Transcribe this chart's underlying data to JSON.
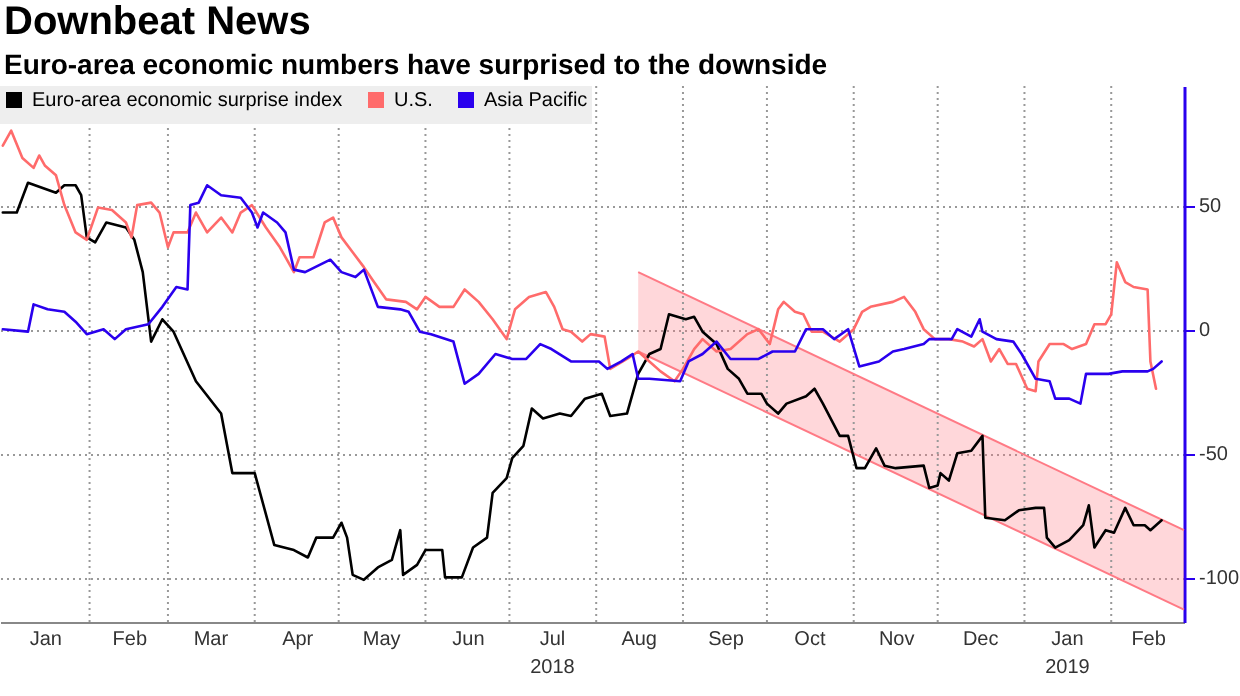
{
  "chart_data": {
    "type": "line",
    "title": "Downbeat News",
    "subtitle": "Euro-area economic numbers have surprised to the downside",
    "xlim": [
      "2017-12-31",
      "2019-02-27"
    ],
    "xticks": [
      {
        "value": "2018-01-16",
        "label": "Jan"
      },
      {
        "value": "2018-02-01",
        "label": null
      },
      {
        "value": "2018-02-15",
        "label": "Feb"
      },
      {
        "value": "2018-03-01",
        "label": null
      },
      {
        "value": "2018-03-16",
        "label": "Mar"
      },
      {
        "value": "2018-04-01",
        "label": null
      },
      {
        "value": "2018-04-16",
        "label": "Apr"
      },
      {
        "value": "2018-05-01",
        "label": null
      },
      {
        "value": "2018-05-16",
        "label": "May"
      },
      {
        "value": "2018-06-01",
        "label": null
      },
      {
        "value": "2018-06-16",
        "label": "Jun"
      },
      {
        "value": "2018-07-01",
        "label": null
      },
      {
        "value": "2018-07-16",
        "label": "Jul\n2018"
      },
      {
        "value": "2018-08-01",
        "label": null
      },
      {
        "value": "2018-08-16",
        "label": "Aug"
      },
      {
        "value": "2018-09-01",
        "label": null
      },
      {
        "value": "2018-09-16",
        "label": "Sep"
      },
      {
        "value": "2018-10-01",
        "label": null
      },
      {
        "value": "2018-10-16",
        "label": "Oct"
      },
      {
        "value": "2018-11-01",
        "label": null
      },
      {
        "value": "2018-11-16",
        "label": "Nov"
      },
      {
        "value": "2018-12-01",
        "label": null
      },
      {
        "value": "2018-12-16",
        "label": "Dec"
      },
      {
        "value": "2019-01-01",
        "label": null
      },
      {
        "value": "2019-01-16",
        "label": "Jan\n2019"
      },
      {
        "value": "2019-02-01",
        "label": null
      },
      {
        "value": "2019-02-14",
        "label": "Feb"
      }
    ],
    "ylim": [
      -118,
      98
    ],
    "yticks": [
      -100,
      -50,
      0,
      50
    ],
    "grid": true,
    "legend": "top left",
    "series": [
      {
        "name": "Euro-area economic surprise index",
        "color": "#000000",
        "x": [
          "2018-01-01",
          "2018-01-06",
          "2018-01-10",
          "2018-01-20",
          "2018-01-23",
          "2018-01-27",
          "2018-01-29",
          "2018-01-31",
          "2018-02-03",
          "2018-02-07",
          "2018-02-14",
          "2018-02-17",
          "2018-02-20",
          "2018-02-23",
          "2018-02-27",
          "2018-03-03",
          "2018-03-11",
          "2018-03-20",
          "2018-03-24",
          "2018-04-01",
          "2018-04-08",
          "2018-04-15",
          "2018-04-20",
          "2018-04-23",
          "2018-04-29",
          "2018-05-02",
          "2018-05-04",
          "2018-05-06",
          "2018-05-10",
          "2018-05-15",
          "2018-05-20",
          "2018-05-23",
          "2018-05-24",
          "2018-05-29",
          "2018-06-01",
          "2018-06-07",
          "2018-06-08",
          "2018-06-14",
          "2018-06-18",
          "2018-06-23",
          "2018-06-25",
          "2018-06-30",
          "2018-07-02",
          "2018-07-06",
          "2018-07-09",
          "2018-07-13",
          "2018-07-19",
          "2018-07-23",
          "2018-07-28",
          "2018-08-03",
          "2018-08-06",
          "2018-08-12",
          "2018-08-16",
          "2018-08-20",
          "2018-08-24",
          "2018-08-27",
          "2018-09-02",
          "2018-09-05",
          "2018-09-08",
          "2018-09-13",
          "2018-09-17",
          "2018-09-21",
          "2018-09-24",
          "2018-09-29",
          "2018-10-01",
          "2018-10-05",
          "2018-10-08",
          "2018-10-15",
          "2018-10-18",
          "2018-10-21",
          "2018-10-27",
          "2018-10-30",
          "2018-11-02",
          "2018-11-05",
          "2018-11-09",
          "2018-11-12",
          "2018-11-16",
          "2018-11-26",
          "2018-11-28",
          "2018-12-01",
          "2018-12-02",
          "2018-12-05",
          "2018-12-08",
          "2018-12-13",
          "2018-12-17",
          "2018-12-18",
          "2018-12-25",
          "2018-12-30",
          "2019-01-05",
          "2019-01-08",
          "2019-01-09",
          "2019-01-12",
          "2019-01-17",
          "2019-01-22",
          "2019-01-24",
          "2019-01-26",
          "2019-01-30",
          "2019-02-02",
          "2019-02-06",
          "2019-02-09",
          "2019-02-13",
          "2019-02-15",
          "2019-02-19"
        ],
        "values": [
          47,
          47,
          59,
          55,
          58,
          58,
          54,
          37,
          35,
          43,
          41,
          36,
          23,
          -5,
          4,
          -1,
          -21,
          -34,
          -58,
          -58,
          -87,
          -89,
          -92,
          -84,
          -84,
          -78,
          -84,
          -99,
          -101,
          -96,
          -93,
          -81,
          -99,
          -95,
          -89,
          -89,
          -100,
          -100,
          -88,
          -84,
          -66,
          -60,
          -52,
          -47,
          -32,
          -36,
          -34,
          -35,
          -28,
          -26,
          -35,
          -34,
          -18,
          -10,
          -8,
          6,
          4,
          5,
          -1,
          -6,
          -16,
          -20,
          -26,
          -26,
          -30,
          -34,
          -30,
          -27,
          -24,
          -30,
          -43,
          -43,
          -56,
          -56,
          -48,
          -55,
          -56,
          -55,
          -64,
          -63,
          -58,
          -61,
          -50,
          -49,
          -43,
          -76,
          -77,
          -73,
          -72,
          -72,
          -84,
          -88,
          -85,
          -79,
          -71,
          -88,
          -81,
          -82,
          -72,
          -79,
          -79,
          -81,
          -77
        ]
      },
      {
        "name": "U.S.",
        "color": "#ff6b6b",
        "x": [
          "2018-01-01",
          "2018-01-04",
          "2018-01-08",
          "2018-01-12",
          "2018-01-14",
          "2018-01-16",
          "2018-01-20",
          "2018-01-23",
          "2018-01-27",
          "2018-01-31",
          "2018-02-04",
          "2018-02-09",
          "2018-02-14",
          "2018-02-16",
          "2018-02-18",
          "2018-02-23",
          "2018-02-26",
          "2018-03-01",
          "2018-03-03",
          "2018-03-08",
          "2018-03-11",
          "2018-03-15",
          "2018-03-20",
          "2018-03-24",
          "2018-03-27",
          "2018-03-31",
          "2018-04-05",
          "2018-04-10",
          "2018-04-15",
          "2018-04-17",
          "2018-04-22",
          "2018-04-26",
          "2018-04-29",
          "2018-05-02",
          "2018-05-06",
          "2018-05-10",
          "2018-05-13",
          "2018-05-18",
          "2018-05-25",
          "2018-05-29",
          "2018-06-01",
          "2018-06-06",
          "2018-06-11",
          "2018-06-15",
          "2018-06-20",
          "2018-06-25",
          "2018-06-30",
          "2018-07-03",
          "2018-07-08",
          "2018-07-14",
          "2018-07-17",
          "2018-07-20",
          "2018-07-23",
          "2018-07-27",
          "2018-07-30",
          "2018-08-04",
          "2018-08-06",
          "2018-08-12",
          "2018-08-16",
          "2018-08-20",
          "2018-08-24",
          "2018-08-29",
          "2018-09-01",
          "2018-09-05",
          "2018-09-08",
          "2018-09-13",
          "2018-09-18",
          "2018-09-24",
          "2018-09-28",
          "2018-10-02",
          "2018-10-05",
          "2018-10-07",
          "2018-10-11",
          "2018-10-14",
          "2018-10-17",
          "2018-10-21",
          "2018-10-27",
          "2018-11-01",
          "2018-11-04",
          "2018-11-07",
          "2018-11-15",
          "2018-11-19",
          "2018-11-23",
          "2018-11-26",
          "2018-11-30",
          "2018-12-05",
          "2018-12-10",
          "2018-12-14",
          "2018-12-17",
          "2018-12-20",
          "2018-12-23",
          "2018-12-26",
          "2018-12-29",
          "2019-01-02",
          "2019-01-05",
          "2019-01-06",
          "2019-01-10",
          "2019-01-15",
          "2019-01-18",
          "2019-01-23",
          "2019-01-26",
          "2019-01-30",
          "2019-02-01",
          "2019-02-03",
          "2019-02-06",
          "2019-02-09",
          "2019-02-14",
          "2019-02-15",
          "2019-02-17"
        ],
        "values": [
          74,
          80,
          69,
          65,
          70,
          66,
          62,
          50,
          39,
          36,
          49,
          48,
          43,
          37,
          50,
          51,
          47,
          33,
          39,
          39,
          47,
          39,
          45,
          39,
          47,
          50,
          41,
          33,
          23,
          29,
          29,
          43,
          45,
          37,
          31,
          25,
          20,
          12,
          11,
          8,
          13,
          9,
          9,
          16,
          11,
          4,
          -4,
          8,
          13,
          15,
          9,
          0,
          -1,
          -5,
          -2,
          -3,
          -16,
          -12,
          -9,
          -13,
          -17,
          -21,
          -16,
          -8,
          -4,
          -9,
          -8,
          -2,
          0,
          -6,
          8,
          11,
          7,
          6,
          -1,
          -1,
          -5,
          0,
          7,
          9,
          11,
          13,
          7,
          0,
          -4,
          -4,
          -5,
          -7,
          -4,
          -13,
          -8,
          -14,
          -14,
          -24,
          -25,
          -13,
          -6,
          -6,
          -8,
          -6,
          2,
          2,
          6,
          27,
          19,
          17,
          16,
          -13,
          -24
        ]
      },
      {
        "name": "Asia Pacific",
        "color": "#2a00ee",
        "x": [
          "2018-01-01",
          "2018-01-10",
          "2018-01-12",
          "2018-01-17",
          "2018-01-23",
          "2018-01-27",
          "2018-01-31",
          "2018-02-06",
          "2018-02-10",
          "2018-02-14",
          "2018-02-22",
          "2018-02-27",
          "2018-03-04",
          "2018-03-08",
          "2018-03-09",
          "2018-03-12",
          "2018-03-15",
          "2018-03-20",
          "2018-03-27",
          "2018-03-31",
          "2018-04-02",
          "2018-04-04",
          "2018-04-09",
          "2018-04-12",
          "2018-04-15",
          "2018-04-19",
          "2018-04-28",
          "2018-05-02",
          "2018-05-07",
          "2018-05-10",
          "2018-05-15",
          "2018-05-23",
          "2018-05-26",
          "2018-05-30",
          "2018-06-03",
          "2018-06-11",
          "2018-06-15",
          "2018-06-20",
          "2018-06-26",
          "2018-07-02",
          "2018-07-07",
          "2018-07-12",
          "2018-07-16",
          "2018-07-23",
          "2018-08-02",
          "2018-08-05",
          "2018-08-10",
          "2018-08-14",
          "2018-08-16",
          "2018-08-20",
          "2018-08-31",
          "2018-09-03",
          "2018-09-08",
          "2018-09-13",
          "2018-09-18",
          "2018-09-28",
          "2018-10-03",
          "2018-10-11",
          "2018-10-15",
          "2018-10-21",
          "2018-10-25",
          "2018-10-30",
          "2018-11-03",
          "2018-11-10",
          "2018-11-15",
          "2018-11-19",
          "2018-11-26",
          "2018-11-28",
          "2018-12-06",
          "2018-12-08",
          "2018-12-13",
          "2018-12-16",
          "2018-12-17",
          "2018-12-22",
          "2018-12-28",
          "2018-12-31",
          "2019-01-05",
          "2019-01-10",
          "2019-01-12",
          "2019-01-17",
          "2019-01-21",
          "2019-01-23",
          "2019-01-31",
          "2019-02-05",
          "2019-02-14",
          "2019-02-16",
          "2019-02-19"
        ],
        "values": [
          0,
          -1,
          10,
          8,
          7,
          3,
          -2,
          0,
          -4,
          0,
          2,
          9,
          17,
          16,
          50,
          51,
          58,
          54,
          53,
          47,
          41,
          47,
          43,
          39,
          24,
          23,
          28,
          23,
          21,
          24,
          9,
          8,
          7,
          -1,
          -2,
          -5,
          -22,
          -18,
          -10,
          -12,
          -12,
          -6,
          -8,
          -13,
          -13,
          -16,
          -13,
          -10,
          -20,
          -20,
          -21,
          -13,
          -10,
          -5,
          -12,
          -12,
          -9,
          -9,
          0,
          0,
          -4,
          0,
          -15,
          -13,
          -9,
          -8,
          -6,
          -4,
          -4,
          0,
          -3,
          4,
          -1,
          -4,
          -5,
          -10,
          -20,
          -21,
          -28,
          -28,
          -30,
          -18,
          -18,
          -17,
          -17,
          -16,
          -13
        ]
      },
      {
        "color": "#ff7a85",
        "x": [
          "2018-08-16",
          "2019-02-27"
        ],
        "values": [
          23,
          -81
        ]
      },
      {
        "color": "#ff7a85",
        "x": [
          "2018-08-16",
          "2019-02-27"
        ],
        "values": [
          -9,
          -113
        ]
      }
    ]
  }
}
